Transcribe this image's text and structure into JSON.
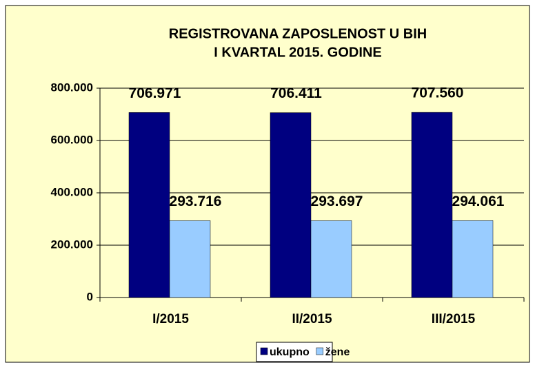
{
  "chart_data": {
    "type": "bar",
    "title": [
      "REGISTROVANA  ZAPOSLENOST  U BIH",
      "I KVARTAL  2015. GODINE"
    ],
    "categories": [
      "I/2015",
      "II/2015",
      "III/2015"
    ],
    "series": [
      {
        "name": "ukupno",
        "color": "#000080",
        "values": [
          706971,
          706411,
          707560
        ],
        "value_labels": [
          "706.971",
          "706.411",
          "707.560"
        ]
      },
      {
        "name": "žene",
        "color": "#99ccff",
        "values": [
          293716,
          293697,
          294061
        ],
        "value_labels": [
          "293.716",
          "293.697",
          "294.061"
        ]
      }
    ],
    "ylim": [
      0,
      800000
    ],
    "yticks": [
      0,
      {
        "value": 200000,
        "label": "200.000"
      },
      {
        "value": 400000,
        "label": "400.000"
      },
      {
        "value": 600000,
        "label": "600.000"
      },
      {
        "value": 800000,
        "label": "800.000"
      }
    ],
    "grid": true,
    "legend": "bottom"
  }
}
